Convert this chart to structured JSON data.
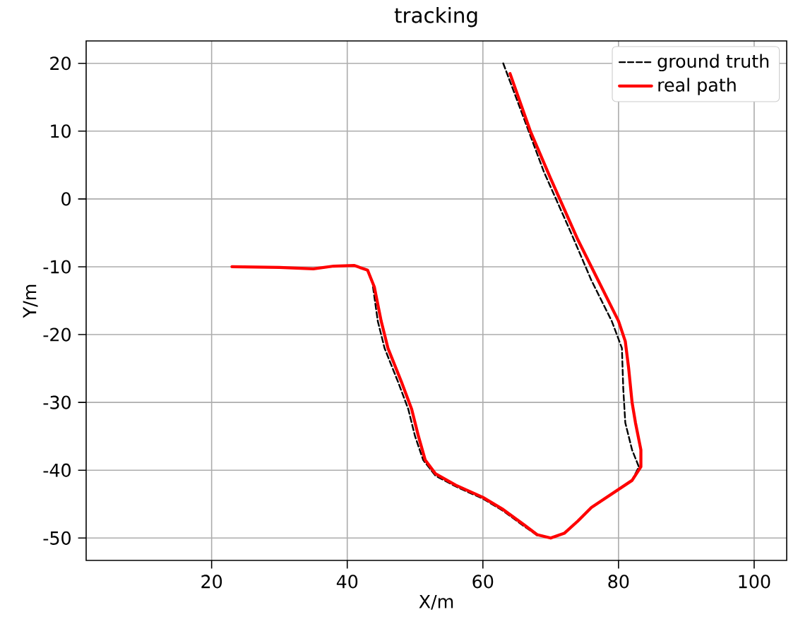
{
  "chart_data": {
    "type": "line",
    "title": "tracking",
    "xlabel": "X/m",
    "ylabel": "Y/m",
    "xlim": [
      1.5,
      104.8
    ],
    "ylim": [
      -53.3,
      23.3
    ],
    "xticks": [
      20,
      40,
      60,
      80,
      100
    ],
    "yticks": [
      -50,
      -40,
      -30,
      -20,
      -10,
      0,
      10,
      20
    ],
    "grid": true,
    "legend": "top right",
    "marker": "none",
    "series": [
      {
        "name": "ground truth",
        "color": "#000000",
        "line_style": "dashed",
        "x": [
          63,
          66,
          69,
          73,
          76,
          79,
          80.5,
          80.7,
          81,
          82,
          83,
          82,
          76,
          74,
          72,
          70,
          68,
          66,
          63,
          60,
          56,
          53,
          51.2,
          50,
          49,
          47.5,
          45.5,
          44.5,
          43.8
        ],
        "values": [
          20,
          12,
          4,
          -5,
          -12,
          -18,
          -22,
          -28,
          -33,
          -37,
          -39.5,
          -41.5,
          null,
          null,
          null,
          null,
          -49.6,
          -48.2,
          -46,
          -44.2,
          -42.4,
          -40.8,
          -38.5,
          -35,
          -31,
          -27,
          -22,
          -18,
          -13
        ]
      },
      {
        "name": "real path",
        "color": "#ff0000",
        "line_style": "solid",
        "x": [
          23,
          30,
          35,
          38,
          41,
          43,
          44,
          45,
          46,
          48,
          49.5,
          50.5,
          51.5,
          53,
          56,
          60,
          63,
          66,
          68,
          70,
          72,
          74,
          76,
          79,
          82,
          83.3,
          83.3,
          82.5,
          82,
          81.5,
          81,
          80,
          77,
          74,
          70,
          67,
          64
        ],
        "values": [
          -10,
          -10.1,
          -10.3,
          -9.9,
          -9.8,
          -10.5,
          -13,
          -18,
          -22,
          -27,
          -31,
          -35,
          -38.5,
          -40.5,
          -42.2,
          -44,
          -45.8,
          -48,
          -49.5,
          -50,
          -49.3,
          -47.5,
          -45.5,
          -43.5,
          -41.5,
          -39.5,
          -37,
          -33,
          -30,
          -25,
          -21,
          -18,
          -12,
          -6,
          3,
          10,
          18.5
        ]
      }
    ]
  }
}
